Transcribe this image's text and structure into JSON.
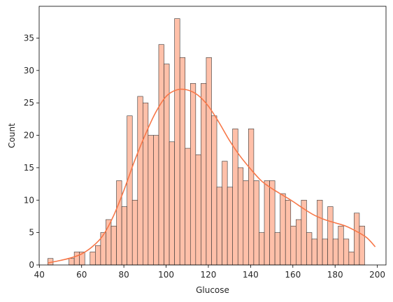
{
  "chart_data": {
    "type": "histogram",
    "xlabel": "Glucose",
    "ylabel": "Count",
    "xlim": [
      39.9,
      204.1
    ],
    "ylim": [
      0,
      39.9
    ],
    "xticks": [
      40,
      60,
      80,
      100,
      120,
      140,
      160,
      180,
      200
    ],
    "yticks": [
      0,
      5,
      10,
      15,
      20,
      25,
      30,
      35
    ],
    "bar_color": "#FFC0A9",
    "edge_color": "#333333",
    "kde_color": "#F77748",
    "bins": {
      "start": 44,
      "width": 2.5,
      "counts": [
        1,
        0,
        0,
        0,
        1,
        2,
        2,
        0,
        2,
        3,
        5,
        7,
        6,
        13,
        9,
        23,
        10,
        26,
        25,
        20,
        20,
        34,
        31,
        19,
        38,
        32,
        18,
        28,
        17,
        28,
        32,
        23,
        12,
        16,
        12,
        21,
        15,
        13,
        21,
        13,
        5,
        13,
        13,
        5,
        11,
        10,
        6,
        7,
        10,
        5,
        4,
        10,
        4,
        9,
        4,
        6,
        4,
        2,
        8,
        6
      ]
    },
    "kde": {
      "x": [
        44,
        50,
        55,
        60,
        65,
        70,
        75,
        80,
        85,
        90,
        95,
        100,
        105,
        110,
        115,
        120,
        125,
        130,
        135,
        140,
        145,
        150,
        155,
        160,
        165,
        170,
        175,
        180,
        185,
        190,
        195,
        199
      ],
      "y": [
        0.3,
        0.7,
        1.1,
        1.7,
        2.8,
        4.5,
        7.5,
        11.5,
        16,
        20,
        23.5,
        26,
        27,
        27,
        26.2,
        24.5,
        22,
        19.2,
        16.8,
        14.8,
        13,
        11.8,
        10.8,
        9.8,
        8.7,
        7.7,
        7,
        6.5,
        6,
        5.2,
        4.2,
        2.8
      ]
    }
  }
}
